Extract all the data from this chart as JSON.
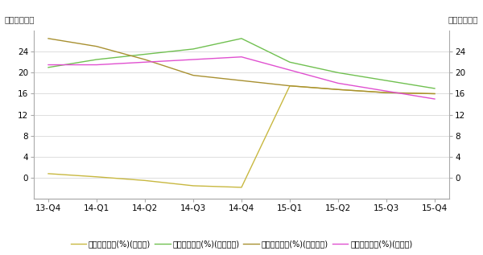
{
  "x_labels": [
    "13-Q4",
    "14-Q1",
    "14-Q2",
    "14-Q3",
    "14-Q4",
    "15-Q1",
    "15-Q2",
    "15-Q3",
    "15-Q4"
  ],
  "series": [
    {
      "name": "净资产收益率(%)(一心堂)",
      "color": "#c8b840",
      "values": [
        0.8,
        0.2,
        -0.5,
        -1.5,
        -1.8,
        17.5,
        16.8,
        16.2,
        16.0
      ]
    },
    {
      "name": "净资产收益率(%)(益丰药房)",
      "color": "#70c050",
      "values": [
        21.0,
        22.5,
        23.5,
        24.5,
        26.5,
        22.0,
        20.0,
        18.5,
        17.0
      ]
    },
    {
      "name": "净资产收益率(%)(海王星辰)",
      "color": "#a89030",
      "values": [
        26.5,
        25.0,
        22.5,
        19.5,
        18.5,
        17.5,
        16.8,
        16.2,
        16.0
      ]
    },
    {
      "name": "净资产收益率(%)(老百姓)",
      "color": "#e050d0",
      "values": [
        21.5,
        21.5,
        22.0,
        22.5,
        23.0,
        20.5,
        18.0,
        16.5,
        15.0
      ]
    }
  ],
  "ylim": [
    -4,
    28
  ],
  "yticks": [
    0,
    4,
    8,
    12,
    16,
    20,
    24
  ],
  "ylabel": "净资产收益率",
  "bg_color": "#ffffff",
  "grid_color": "#d0d0d0",
  "axis_fontsize": 7.5,
  "legend_fontsize": 7.0,
  "ylabel_fontsize": 7.5
}
